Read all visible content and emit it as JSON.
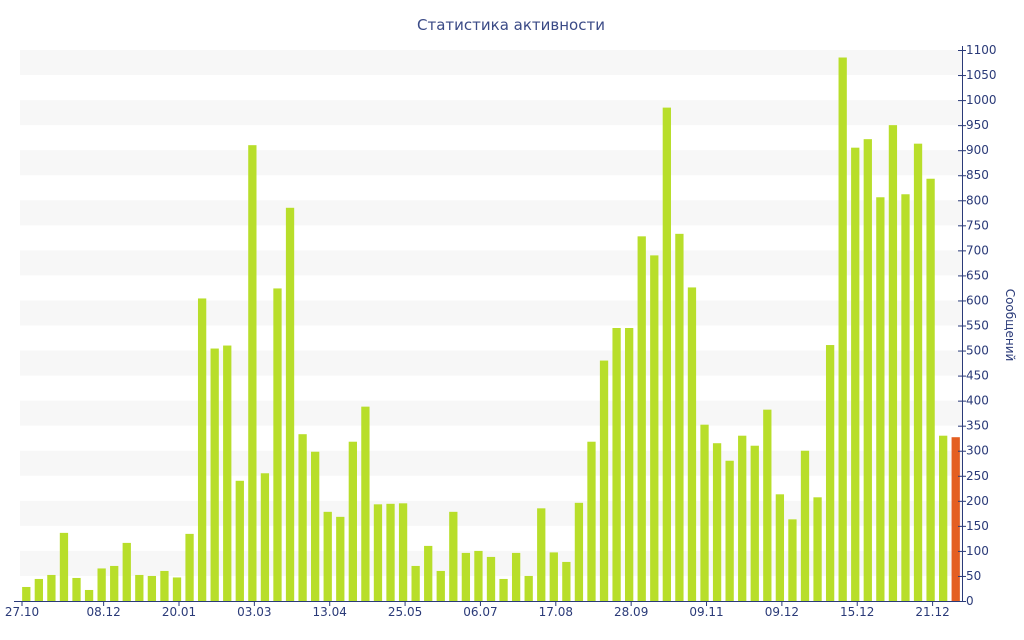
{
  "chart_data": {
    "type": "bar",
    "title": "Статистика активности",
    "ylabel": "Сообщений",
    "ylim": [
      0,
      1100
    ],
    "y_ticks": [
      0,
      50,
      100,
      150,
      200,
      250,
      300,
      350,
      400,
      450,
      500,
      550,
      600,
      650,
      700,
      750,
      800,
      850,
      900,
      950,
      1000,
      1050,
      1100
    ],
    "x_tick_labels": [
      {
        "label": "27.10",
        "index": 0
      },
      {
        "label": "08.12",
        "index": 6
      },
      {
        "label": "20.01",
        "index": 12
      },
      {
        "label": "03.03",
        "index": 18
      },
      {
        "label": "13.04",
        "index": 24
      },
      {
        "label": "25.05",
        "index": 30
      },
      {
        "label": "06.07",
        "index": 36
      },
      {
        "label": "17.08",
        "index": 42
      },
      {
        "label": "28.09",
        "index": 48
      },
      {
        "label": "09.11",
        "index": 54
      },
      {
        "label": "09.12",
        "index": 60
      },
      {
        "label": "15.12",
        "index": 66
      },
      {
        "label": "21.12",
        "index": 72
      }
    ],
    "values": [
      28,
      44,
      52,
      136,
      46,
      22,
      65,
      70,
      116,
      52,
      50,
      60,
      47,
      134,
      604,
      504,
      510,
      240,
      910,
      255,
      624,
      785,
      333,
      298,
      178,
      168,
      318,
      388,
      193,
      194,
      195,
      70,
      110,
      60,
      178,
      96,
      100,
      88,
      44,
      96,
      50,
      185,
      97,
      78,
      196,
      318,
      480,
      545,
      545,
      728,
      690,
      985,
      733,
      626,
      352,
      315,
      280,
      330,
      310,
      382,
      213,
      163,
      300,
      207,
      511,
      1085,
      905,
      922,
      806,
      950,
      812,
      913,
      843,
      330,
      327
    ],
    "highlight_last": true,
    "colors": {
      "bar": "#b8de2a",
      "highlight": "#e45f22",
      "stripe": "#f7f7f7",
      "text": "#2a3a78",
      "axis": "#2a3a78"
    },
    "grid": "alternating horizontal bands"
  }
}
